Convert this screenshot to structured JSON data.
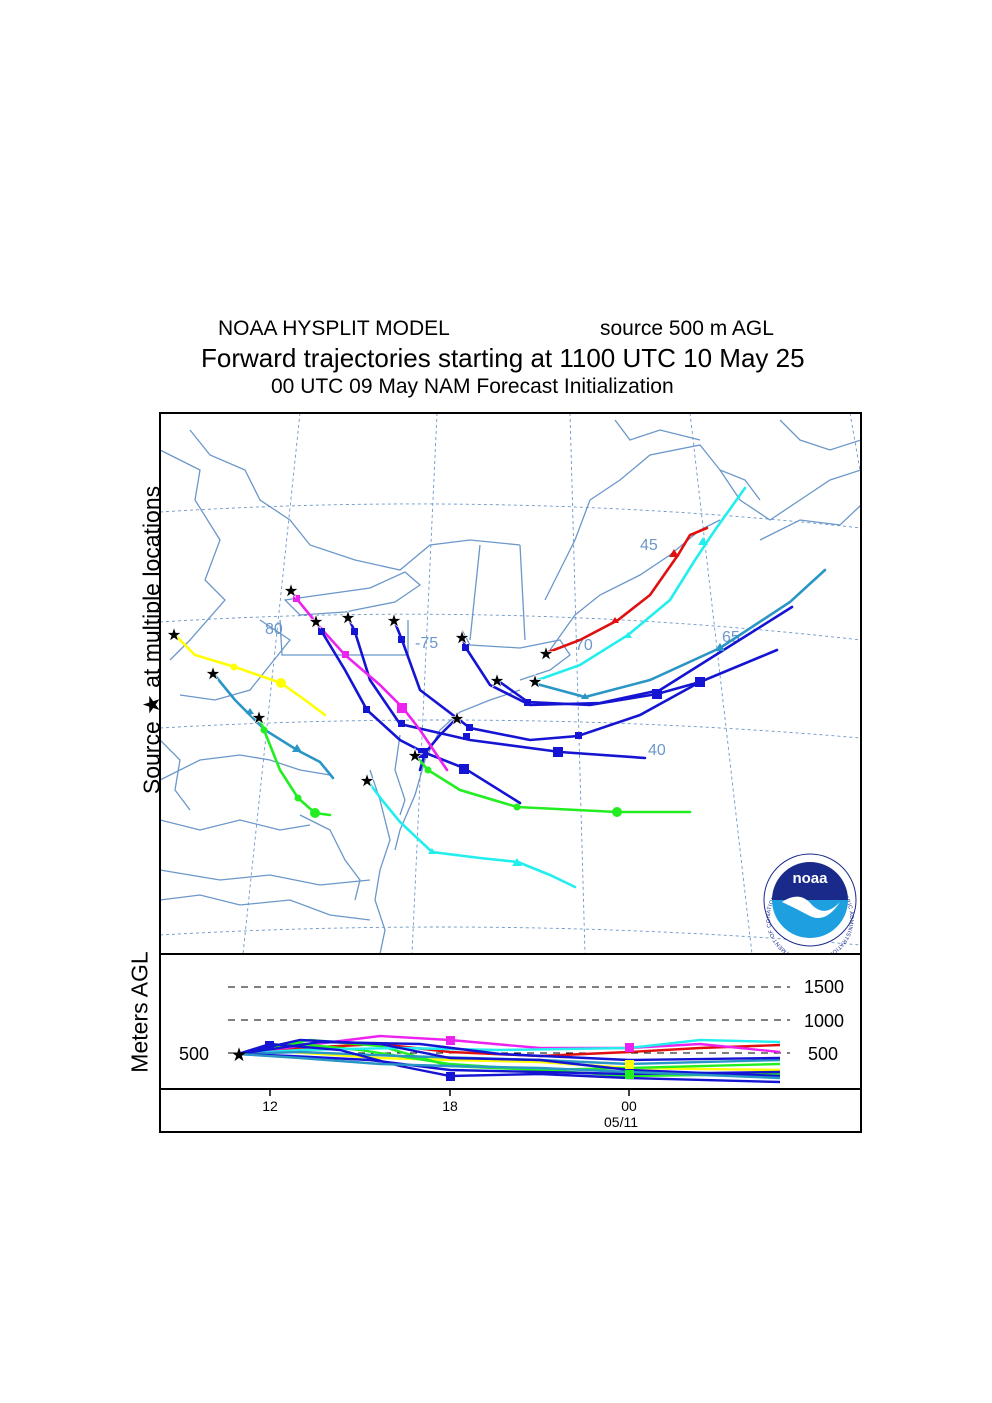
{
  "header": {
    "model": "NOAA HYSPLIT MODEL",
    "source": "source 500 m AGL",
    "title": "Forward trajectories starting at 1100 UTC 10 May 25",
    "subtitle": "00 UTC 09 May    NAM   Forecast Initialization"
  },
  "map": {
    "ylabel": "Source ★  at multiple locations",
    "grid_labels": [
      "80",
      "-75",
      "70",
      "65",
      "45",
      "40"
    ]
  },
  "height_panel": {
    "ylabel": "Meters AGL",
    "left_label": "500",
    "levels": [
      "1500",
      "1000",
      "500"
    ],
    "x_ticks": [
      "12",
      "18",
      "00"
    ],
    "date_label": "05/11"
  },
  "logo": {
    "text": "noaa",
    "ring_text": "NATIONAL OCEANIC AND ATMOSPHERIC ADMINISTRATION · U.S. DEPARTMENT OF COMMERCE"
  },
  "colors": {
    "coast": "#6b97c9",
    "grid": "#6b97c9",
    "red": "#e01010",
    "blue": "#1414d2",
    "magenta": "#ee22ee",
    "yellow": "#ffff00",
    "green": "#22ee22",
    "cyan": "#22eeee",
    "steel": "#2a96c6",
    "noaa_navy": "#1a2a8a",
    "noaa_light": "#1e9fe0"
  }
}
